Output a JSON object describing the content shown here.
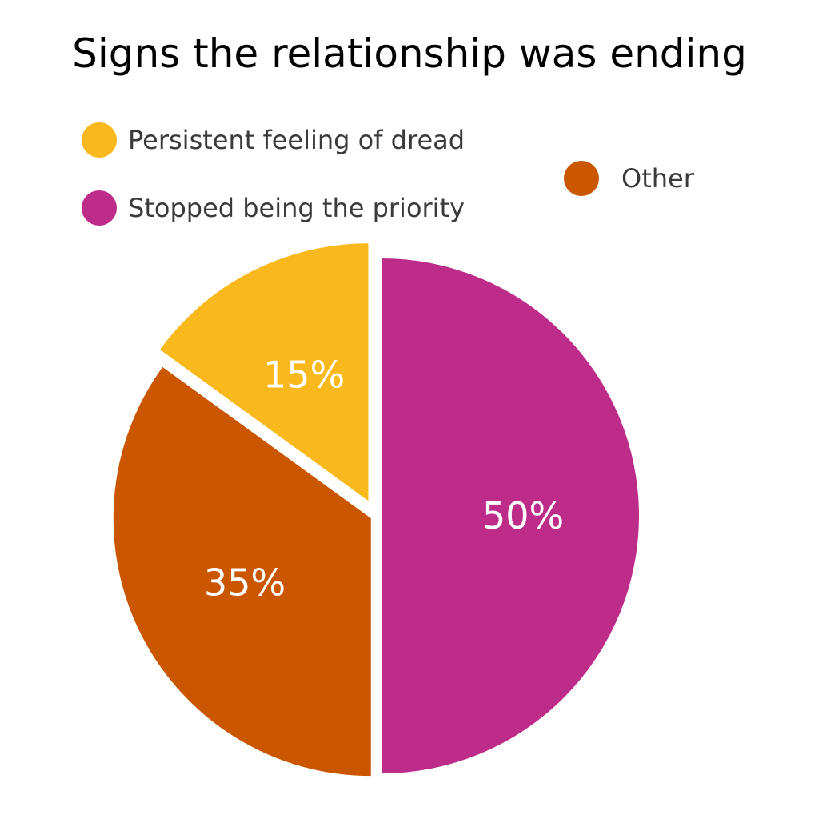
{
  "chart_data": {
    "type": "pie",
    "title": "Signs the relationship was ending",
    "slices": [
      {
        "label": "Persistent feeling of dread",
        "value": 15,
        "display": "15%",
        "color": "#F9B81B",
        "exploded": true
      },
      {
        "label": "Stopped being the priority",
        "value": 50,
        "display": "50%",
        "color": "#BD2C88",
        "exploded": false
      },
      {
        "label": "Other",
        "value": 35,
        "display": "35%",
        "color": "#CB5600",
        "exploded": false
      }
    ],
    "legend_position": "top"
  }
}
